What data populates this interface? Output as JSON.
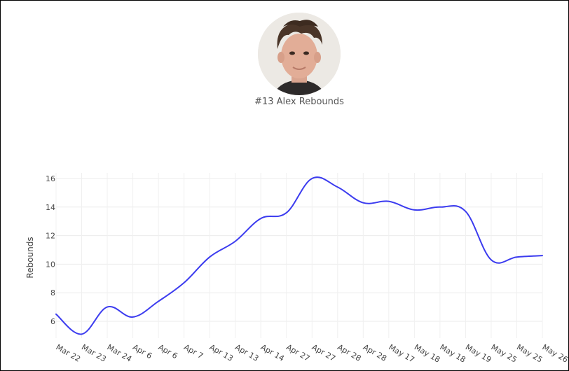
{
  "player": {
    "label": "#13 Alex Rebounds"
  },
  "chart_data": {
    "type": "line",
    "ylabel": "Rebounds",
    "xlabel": "",
    "ylim": [
      4.5,
      16.5
    ],
    "yticks": [
      6,
      8,
      10,
      12,
      14,
      16
    ],
    "grid": true,
    "line_color": "#3b3bef",
    "categories": [
      "Mar 22",
      "Mar 23",
      "Mar 24",
      "Apr 6",
      "Apr 6",
      "Apr 7",
      "Apr 13",
      "Apr 13",
      "Apr 14",
      "Apr 27",
      "Apr 27",
      "Apr 28",
      "Apr 28",
      "May 17",
      "May 18",
      "May 18",
      "May 19",
      "May 25",
      "May 25",
      "May 26"
    ],
    "series": [
      {
        "values": [
          6.5,
          5.1,
          7.0,
          6.3,
          7.4,
          8.7,
          10.5,
          11.6,
          13.2,
          13.6,
          16.0,
          15.4,
          14.3,
          14.4,
          13.8,
          14.0,
          13.7,
          10.3,
          10.5,
          10.6
        ]
      }
    ]
  }
}
